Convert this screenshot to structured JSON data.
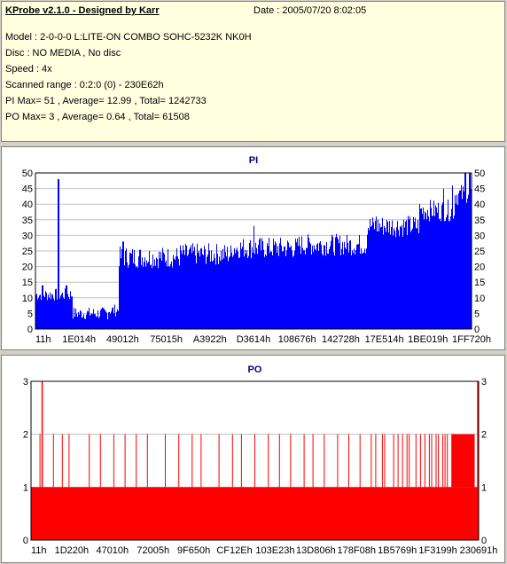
{
  "info": {
    "title": "KProbe v2.1.0 - Designed by Karr",
    "date": "Date : 2005/07/20 8:02:05",
    "lines": [
      "Model : 2-0-0-0 L:LITE-ON COMBO SOHC-5232K NK0H",
      "Disc : NO MEDIA , No disc",
      "Speed : 4x",
      "Scanned range : 0:2:0 (0) - 230E62h",
      "PI Max= 51 , Average= 12.99 , Total= 1242733",
      "PO Max= 3 , Average= 0.64 , Total= 61508"
    ]
  },
  "chart_data": [
    {
      "type": "bar",
      "title": "PI",
      "color": "#0000ff",
      "ylim": [
        0,
        50
      ],
      "yticks": [
        0,
        5,
        10,
        15,
        20,
        25,
        30,
        35,
        40,
        45,
        50
      ],
      "xticks": [
        "11h",
        "1E014h",
        "49012h",
        "75015h",
        "A3922h",
        "D3614h",
        "108676h",
        "142728h",
        "17E514h",
        "1BE019h",
        "1FF720h"
      ],
      "series": [
        {
          "segments": [
            {
              "from": 0.0,
              "to": 0.085,
              "value": 11
            },
            {
              "from": 0.085,
              "to": 0.165,
              "value": 5
            },
            {
              "from": 0.165,
              "to": 0.19,
              "value": 6
            },
            {
              "from": 0.19,
              "to": 0.33,
              "value": 23
            },
            {
              "from": 0.33,
              "to": 0.45,
              "value": 24
            },
            {
              "from": 0.45,
              "to": 0.6,
              "value": 26
            },
            {
              "from": 0.6,
              "to": 0.76,
              "value": 27
            },
            {
              "from": 0.76,
              "to": 0.88,
              "value": 33
            },
            {
              "from": 0.88,
              "to": 0.96,
              "value": 38
            },
            {
              "from": 0.96,
              "to": 1.0,
              "value": 43
            }
          ],
          "spikes": [
            {
              "pos": 0.052,
              "value": 48
            },
            {
              "pos": 0.015,
              "value": 14
            },
            {
              "pos": 0.07,
              "value": 14
            },
            {
              "pos": 0.2,
              "value": 28
            },
            {
              "pos": 0.5,
              "value": 33
            },
            {
              "pos": 0.78,
              "value": 36
            },
            {
              "pos": 0.935,
              "value": 45
            },
            {
              "pos": 0.955,
              "value": 46
            },
            {
              "pos": 0.985,
              "value": 51
            },
            {
              "pos": 0.995,
              "value": 50
            }
          ]
        }
      ]
    },
    {
      "type": "bar",
      "title": "PO",
      "color": "#ff0000",
      "ylim": [
        0,
        3
      ],
      "yticks": [
        0,
        1,
        2,
        3
      ],
      "xticks": [
        "11h",
        "1D220h",
        "47010h",
        "72005h",
        "9F650h",
        "CF12Eh",
        "103E23h",
        "13D806h",
        "178F08h",
        "1B5769h",
        "1F3199h",
        "230691h"
      ],
      "series": [
        {
          "base": 1,
          "spikes2": [
            0.02,
            0.05,
            0.07,
            0.085,
            0.13,
            0.155,
            0.185,
            0.21,
            0.235,
            0.26,
            0.3,
            0.33,
            0.36,
            0.38,
            0.42,
            0.45,
            0.47,
            0.5,
            0.53,
            0.555,
            0.58,
            0.61,
            0.63,
            0.655,
            0.685,
            0.71,
            0.735,
            0.76,
            0.77,
            0.785,
            0.79,
            0.81,
            0.82,
            0.83,
            0.84,
            0.845,
            0.86,
            0.87,
            0.88,
            0.89,
            0.895,
            0.905,
            0.91,
            0.92,
            0.925,
            0.93,
            0.94,
            0.945,
            0.95,
            0.955,
            0.96,
            0.965,
            0.97,
            0.975,
            0.98,
            0.985,
            0.99
          ],
          "spikes3": [
            0.025,
            0.998
          ]
        }
      ]
    }
  ]
}
